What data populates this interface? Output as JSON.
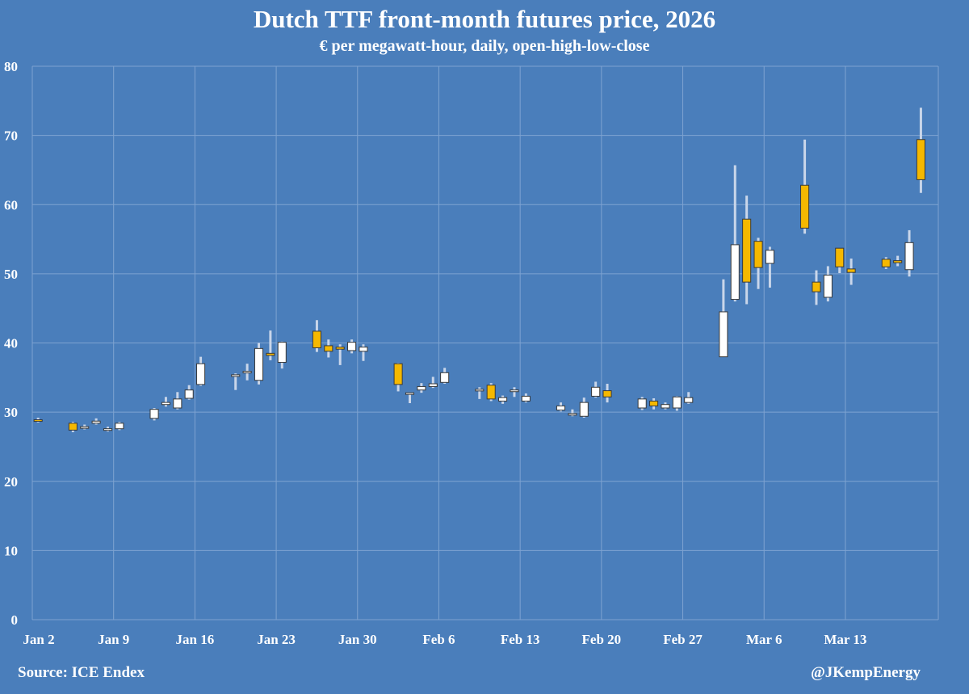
{
  "header": {
    "title": "Dutch TTF front-month futures price, 2026",
    "subtitle": "€ per megawatt-hour, daily, open-high-low-close"
  },
  "footer": {
    "source": "Source: ICE Endex",
    "handle": "@JKempEnergy"
  },
  "colors": {
    "background": "#4a7ebb",
    "up": "#ffffff",
    "down": "#f5b800",
    "wick": "#c9d6ea",
    "grid": "#7ea3d1"
  },
  "chart_data": {
    "type": "candlestick",
    "title": "Dutch TTF front-month futures price, 2026",
    "ylabel": "€ per megawatt-hour",
    "ylim": [
      0,
      80
    ],
    "yticks": [
      0,
      10,
      20,
      30,
      40,
      50,
      60,
      70,
      80
    ],
    "grid": true,
    "xticks": [
      {
        "label": "Jan 2",
        "day": 0
      },
      {
        "label": "Jan 9",
        "day": 7
      },
      {
        "label": "Jan 16",
        "day": 14
      },
      {
        "label": "Jan 23",
        "day": 21
      },
      {
        "label": "Jan 30",
        "day": 28
      },
      {
        "label": "Feb 6",
        "day": 35
      },
      {
        "label": "Feb 13",
        "day": 42
      },
      {
        "label": "Feb 20",
        "day": 49
      },
      {
        "label": "Feb 27",
        "day": 56
      },
      {
        "label": "Mar 6",
        "day": 63
      },
      {
        "label": "Mar 13",
        "day": 70
      }
    ],
    "x_range_days": [
      0,
      77
    ],
    "ohlc": [
      {
        "date": "Jan 2",
        "day": 0,
        "o": 28.9,
        "h": 29.2,
        "l": 28.5,
        "c": 28.8
      },
      {
        "date": "Jan 5",
        "day": 3,
        "o": 28.4,
        "h": 28.6,
        "l": 27.1,
        "c": 27.4
      },
      {
        "date": "Jan 6",
        "day": 4,
        "o": 27.8,
        "h": 28.2,
        "l": 27.5,
        "c": 27.9
      },
      {
        "date": "Jan 7",
        "day": 5,
        "o": 28.4,
        "h": 29.1,
        "l": 28.2,
        "c": 28.7
      },
      {
        "date": "Jan 8",
        "day": 6,
        "o": 27.6,
        "h": 27.9,
        "l": 27.2,
        "c": 27.6
      },
      {
        "date": "Jan 9",
        "day": 7,
        "o": 27.6,
        "h": 28.6,
        "l": 27.4,
        "c": 28.4
      },
      {
        "date": "Jan 12",
        "day": 10,
        "o": 29.1,
        "h": 30.6,
        "l": 28.8,
        "c": 30.4
      },
      {
        "date": "Jan 13",
        "day": 11,
        "o": 31.1,
        "h": 32.2,
        "l": 30.8,
        "c": 31.4
      },
      {
        "date": "Jan 14",
        "day": 12,
        "o": 30.6,
        "h": 32.9,
        "l": 30.4,
        "c": 31.9
      },
      {
        "date": "Jan 15",
        "day": 13,
        "o": 32.0,
        "h": 33.9,
        "l": 31.8,
        "c": 33.2
      },
      {
        "date": "Jan 16",
        "day": 14,
        "o": 34.0,
        "h": 38.0,
        "l": 33.8,
        "c": 37.0
      },
      {
        "date": "Jan 19",
        "day": 17,
        "o": 35.4,
        "h": 35.6,
        "l": 33.2,
        "c": 35.4
      },
      {
        "date": "Jan 20",
        "day": 18,
        "o": 35.8,
        "h": 37.0,
        "l": 34.6,
        "c": 35.9
      },
      {
        "date": "Jan 21",
        "day": 19,
        "o": 34.6,
        "h": 40.0,
        "l": 34.0,
        "c": 39.2
      },
      {
        "date": "Jan 22",
        "day": 20,
        "o": 38.5,
        "h": 41.8,
        "l": 37.5,
        "c": 38.2
      },
      {
        "date": "Jan 23",
        "day": 21,
        "o": 37.2,
        "h": 40.2,
        "l": 36.3,
        "c": 40.1
      },
      {
        "date": "Jan 26",
        "day": 24,
        "o": 41.7,
        "h": 43.3,
        "l": 38.7,
        "c": 39.3
      },
      {
        "date": "Jan 27",
        "day": 25,
        "o": 39.6,
        "h": 40.5,
        "l": 37.9,
        "c": 38.8
      },
      {
        "date": "Jan 28",
        "day": 26,
        "o": 39.4,
        "h": 39.8,
        "l": 36.8,
        "c": 39.1
      },
      {
        "date": "Jan 29",
        "day": 27,
        "o": 38.9,
        "h": 40.5,
        "l": 38.5,
        "c": 40.1
      },
      {
        "date": "Jan 30",
        "day": 28,
        "o": 38.8,
        "h": 39.8,
        "l": 37.4,
        "c": 39.4
      },
      {
        "date": "Feb 2",
        "day": 31,
        "o": 37.0,
        "h": 37.1,
        "l": 33.0,
        "c": 34.0
      },
      {
        "date": "Feb 3",
        "day": 32,
        "o": 32.6,
        "h": 32.8,
        "l": 31.3,
        "c": 32.8
      },
      {
        "date": "Feb 4",
        "day": 33,
        "o": 33.2,
        "h": 34.2,
        "l": 32.8,
        "c": 33.7
      },
      {
        "date": "Feb 5",
        "day": 34,
        "o": 33.7,
        "h": 35.1,
        "l": 33.5,
        "c": 34.1
      },
      {
        "date": "Feb 6",
        "day": 35,
        "o": 34.3,
        "h": 36.4,
        "l": 34.1,
        "c": 35.7
      },
      {
        "date": "Feb 9",
        "day": 38,
        "o": 33.3,
        "h": 33.6,
        "l": 31.9,
        "c": 33.3
      },
      {
        "date": "Feb 10",
        "day": 39,
        "o": 33.9,
        "h": 34.2,
        "l": 31.6,
        "c": 31.9
      },
      {
        "date": "Feb 11",
        "day": 40,
        "o": 31.6,
        "h": 32.4,
        "l": 31.2,
        "c": 32.1
      },
      {
        "date": "Feb 12",
        "day": 41,
        "o": 33.1,
        "h": 33.6,
        "l": 32.2,
        "c": 33.2
      },
      {
        "date": "Feb 13",
        "day": 42,
        "o": 31.6,
        "h": 32.7,
        "l": 31.4,
        "c": 32.3
      },
      {
        "date": "Feb 16",
        "day": 45,
        "o": 30.3,
        "h": 31.4,
        "l": 30.1,
        "c": 30.9
      },
      {
        "date": "Feb 17",
        "day": 46,
        "o": 29.8,
        "h": 30.4,
        "l": 29.4,
        "c": 29.8
      },
      {
        "date": "Feb 18",
        "day": 47,
        "o": 29.4,
        "h": 32.1,
        "l": 29.2,
        "c": 31.4
      },
      {
        "date": "Feb 19",
        "day": 48,
        "o": 32.3,
        "h": 34.4,
        "l": 32.1,
        "c": 33.6
      },
      {
        "date": "Feb 20",
        "day": 49,
        "o": 33.1,
        "h": 34.1,
        "l": 31.4,
        "c": 32.2
      },
      {
        "date": "Feb 23",
        "day": 52,
        "o": 30.6,
        "h": 32.2,
        "l": 30.3,
        "c": 31.9
      },
      {
        "date": "Feb 24",
        "day": 53,
        "o": 31.6,
        "h": 32.0,
        "l": 30.4,
        "c": 30.9
      },
      {
        "date": "Feb 25",
        "day": 54,
        "o": 30.6,
        "h": 31.4,
        "l": 30.4,
        "c": 31.1
      },
      {
        "date": "Feb 26",
        "day": 55,
        "o": 30.6,
        "h": 32.3,
        "l": 30.2,
        "c": 32.2
      },
      {
        "date": "Feb 27",
        "day": 56,
        "o": 31.4,
        "h": 32.9,
        "l": 31.2,
        "c": 32.1
      },
      {
        "date": "Mar 2",
        "day": 59,
        "o": 38.0,
        "h": 49.2,
        "l": 38.0,
        "c": 44.5
      },
      {
        "date": "Mar 3",
        "day": 60,
        "o": 46.3,
        "h": 65.7,
        "l": 46.0,
        "c": 54.2
      },
      {
        "date": "Mar 4",
        "day": 61,
        "o": 57.9,
        "h": 61.3,
        "l": 45.6,
        "c": 48.8
      },
      {
        "date": "Mar 5",
        "day": 62,
        "o": 54.7,
        "h": 55.2,
        "l": 47.8,
        "c": 50.9
      },
      {
        "date": "Mar 6",
        "day": 63,
        "o": 51.5,
        "h": 53.9,
        "l": 48.0,
        "c": 53.4
      },
      {
        "date": "Mar 9",
        "day": 66,
        "o": 62.8,
        "h": 69.4,
        "l": 55.8,
        "c": 56.6
      },
      {
        "date": "Mar 10",
        "day": 67,
        "o": 48.8,
        "h": 50.5,
        "l": 45.5,
        "c": 47.4
      },
      {
        "date": "Mar 11",
        "day": 68,
        "o": 46.6,
        "h": 51.1,
        "l": 46.0,
        "c": 49.8
      },
      {
        "date": "Mar 12",
        "day": 69,
        "o": 53.7,
        "h": 53.7,
        "l": 50.1,
        "c": 51.0
      },
      {
        "date": "Mar 13",
        "day": 70,
        "o": 50.7,
        "h": 52.2,
        "l": 48.4,
        "c": 50.2
      },
      {
        "date": "Mar 16",
        "day": 73,
        "o": 52.1,
        "h": 52.4,
        "l": 50.7,
        "c": 51.0
      },
      {
        "date": "Mar 17",
        "day": 74,
        "o": 51.9,
        "h": 52.6,
        "l": 51.1,
        "c": 51.6
      },
      {
        "date": "Mar 18",
        "day": 75,
        "o": 50.6,
        "h": 56.3,
        "l": 49.6,
        "c": 54.5
      },
      {
        "date": "Mar 19",
        "day": 76,
        "o": 69.4,
        "h": 74.0,
        "l": 61.7,
        "c": 63.6
      }
    ]
  }
}
